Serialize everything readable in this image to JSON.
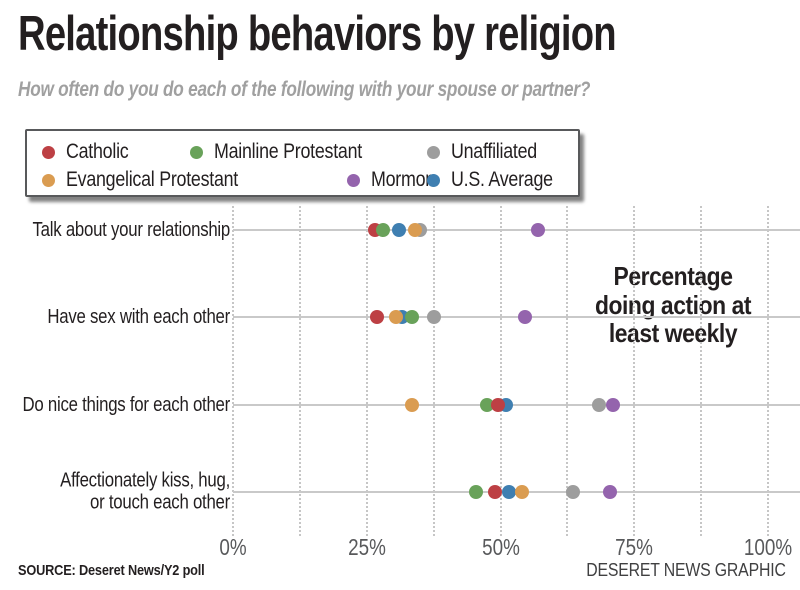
{
  "header": {
    "title": "Relationship behaviors by religion",
    "subtitle": "How often do you do each of the following with your spouse or partner?"
  },
  "legend": {
    "rows": [
      [
        {
          "label": "Catholic",
          "color": "#bd4044"
        },
        {
          "label": "Mainline Protestant",
          "color": "#69a25a"
        },
        {
          "label": "Unaffiliated",
          "color": "#9d9d9d"
        }
      ],
      [
        {
          "label": "Evangelical Protestant",
          "color": "#da9c51"
        },
        {
          "label": "Mormon",
          "color": "#9464ad"
        },
        {
          "label": "U.S. Average",
          "color": "#3f7fb1"
        }
      ]
    ]
  },
  "chart_data": {
    "type": "scatter",
    "title": "Relationship behaviors by religion",
    "annotation": "Percentage\ndoing action at\nleast weekly",
    "x_axis": {
      "min": 0,
      "max": 100,
      "tick_values": [
        0,
        25,
        50,
        75,
        100
      ],
      "tick_labels": [
        "0%",
        "25%",
        "50%",
        "75%",
        "100%"
      ],
      "gridline_step": 12.5,
      "grid": "dotted vertical"
    },
    "series_colors": {
      "Catholic": "#bd4044",
      "Mainline Protestant": "#69a25a",
      "Unaffiliated": "#9d9d9d",
      "Evangelical Protestant": "#da9c51",
      "Mormon": "#9464ad",
      "U.S. Average": "#3f7fb1"
    },
    "categories": [
      "Talk about your relationship",
      "Have sex with each other",
      "Do nice things for each other",
      "Affectionately kiss, hug,\nor touch each other"
    ],
    "rows": [
      {
        "category": "Talk about your relationship",
        "points": [
          {
            "series": "Catholic",
            "value": 26.5
          },
          {
            "series": "Mainline Protestant",
            "value": 28
          },
          {
            "series": "U.S. Average",
            "value": 31
          },
          {
            "series": "Unaffiliated",
            "value": 35
          },
          {
            "series": "Evangelical Protestant",
            "value": 34
          },
          {
            "series": "Mormon",
            "value": 57
          }
        ]
      },
      {
        "category": "Have sex with each other",
        "points": [
          {
            "series": "Catholic",
            "value": 27
          },
          {
            "series": "U.S. Average",
            "value": 31.5
          },
          {
            "series": "Evangelical Protestant",
            "value": 30.5
          },
          {
            "series": "Mainline Protestant",
            "value": 33.5
          },
          {
            "series": "Unaffiliated",
            "value": 37.5
          },
          {
            "series": "Mormon",
            "value": 54.5
          }
        ]
      },
      {
        "category": "Do nice things for each other",
        "points": [
          {
            "series": "Evangelical Protestant",
            "value": 33.5
          },
          {
            "series": "Mainline Protestant",
            "value": 47.5
          },
          {
            "series": "U.S. Average",
            "value": 51
          },
          {
            "series": "Catholic",
            "value": 49.5
          },
          {
            "series": "Unaffiliated",
            "value": 68.5
          },
          {
            "series": "Mormon",
            "value": 71
          }
        ]
      },
      {
        "category": "Affectionately kiss, hug,\nor touch each other",
        "points": [
          {
            "series": "Mainline Protestant",
            "value": 45.5
          },
          {
            "series": "Catholic",
            "value": 49
          },
          {
            "series": "U.S. Average",
            "value": 51.5
          },
          {
            "series": "Evangelical Protestant",
            "value": 54
          },
          {
            "series": "Unaffiliated",
            "value": 63.5
          },
          {
            "series": "Mormon",
            "value": 70.5
          }
        ]
      }
    ]
  },
  "footer": {
    "source": "SOURCE: Deseret News/Y2 poll",
    "credit": "DESERET NEWS GRAPHIC"
  }
}
